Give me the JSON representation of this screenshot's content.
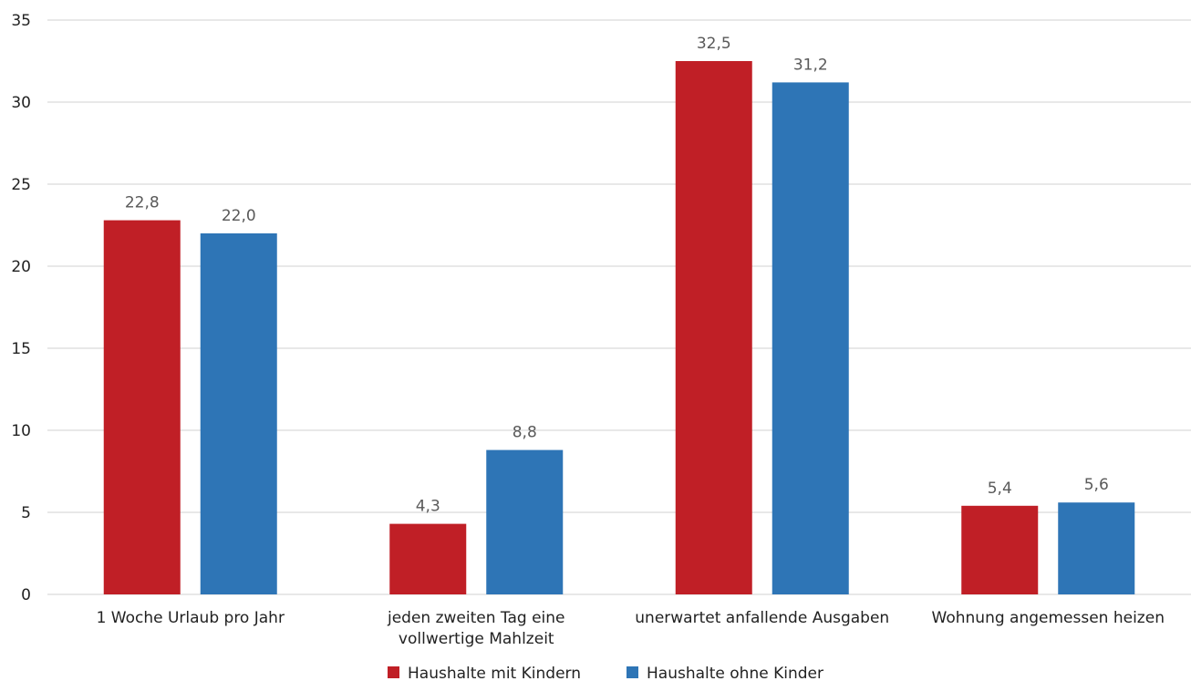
{
  "chart_data": {
    "type": "bar",
    "title": "",
    "xlabel": "",
    "ylabel": "",
    "categories": [
      [
        "1 Woche Urlaub pro Jahr"
      ],
      [
        "jeden zweiten Tag eine",
        "vollwertige Mahlzeit"
      ],
      [
        "unerwartet anfallende Ausgaben"
      ],
      [
        "Wohnung angemessen heizen"
      ]
    ],
    "series": [
      {
        "name": "Haushalte mit Kindern",
        "color": "#c01f26",
        "values": [
          22.8,
          4.3,
          32.5,
          5.4
        ],
        "labels": [
          "22,8",
          "4,3",
          "32,5",
          "5,4"
        ]
      },
      {
        "name": "Haushalte ohne Kinder",
        "color": "#2e75b6",
        "values": [
          22.0,
          8.8,
          31.2,
          5.6
        ],
        "labels": [
          "22,0",
          "8,8",
          "31,2",
          "5,6"
        ]
      }
    ],
    "ylim": [
      0,
      35
    ],
    "yticks": [
      0,
      5,
      10,
      15,
      20,
      25,
      30,
      35
    ],
    "grid": true,
    "gridColor": "#d9d9d9",
    "legend": "bottom-center"
  }
}
